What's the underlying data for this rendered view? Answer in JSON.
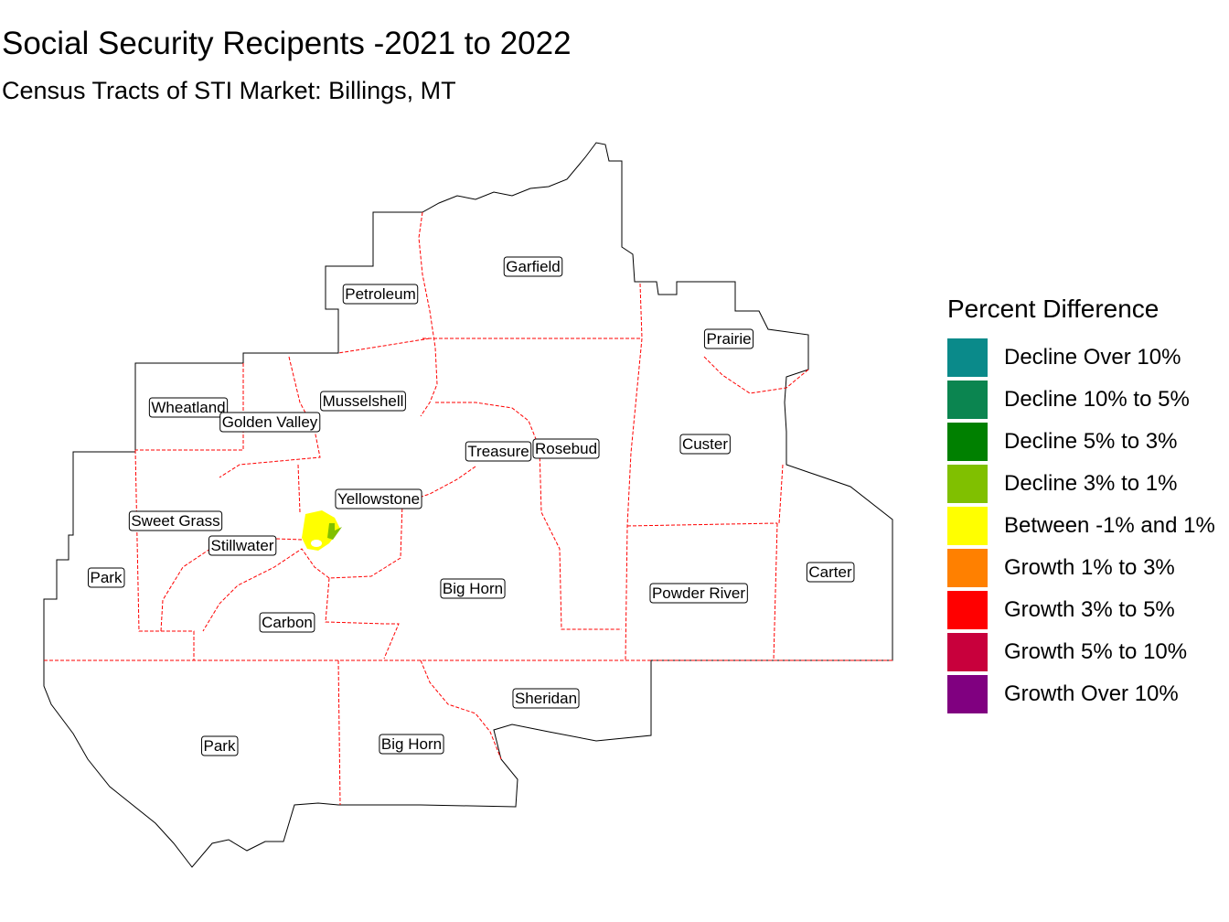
{
  "title": "Social Security Recipents -2021 to 2022",
  "subtitle": "Census Tracts of STI Market: Billings, MT",
  "legend": {
    "title": "Percent Difference",
    "items": [
      {
        "label": "Decline Over 10%",
        "color": "#0a8a8a"
      },
      {
        "label": "Decline 10% to 5%",
        "color": "#0b8550"
      },
      {
        "label": "Decline 5% to 3%",
        "color": "#008000"
      },
      {
        "label": "Decline 3% to 1%",
        "color": "#80c000"
      },
      {
        "label": "Between -1% and 1%",
        "color": "#ffff00"
      },
      {
        "label": "Growth 1% to 3%",
        "color": "#ff8000"
      },
      {
        "label": "Growth 3% to 5%",
        "color": "#ff0000"
      },
      {
        "label": "Growth 5% to 10%",
        "color": "#c8003c"
      },
      {
        "label": "Growth Over 10%",
        "color": "#800080"
      }
    ]
  },
  "counties": [
    "Garfield",
    "Petroleum",
    "Prairie",
    "Wheatland",
    "Golden Valley",
    "Musselshell",
    "Treasure",
    "Rosebud",
    "Custer",
    "Yellowstone",
    "Sweet Grass",
    "Stillwater",
    "Park",
    "Carter",
    "Big Horn",
    "Powder River",
    "Carbon",
    "Sheridan",
    "Park",
    "Big Horn"
  ],
  "tract_colors": {
    "billings_core": "#ffff00",
    "billings_small": "#80c000"
  },
  "border_colors": {
    "outline": "#000000",
    "county": "#ff0000"
  }
}
